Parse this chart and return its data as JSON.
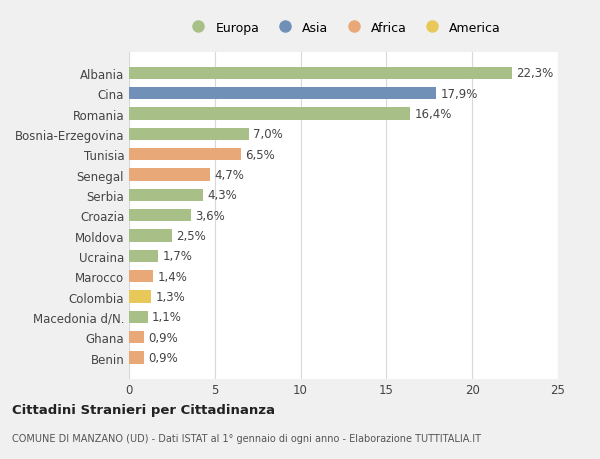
{
  "categories": [
    "Albania",
    "Cina",
    "Romania",
    "Bosnia-Erzegovina",
    "Tunisia",
    "Senegal",
    "Serbia",
    "Croazia",
    "Moldova",
    "Ucraina",
    "Marocco",
    "Colombia",
    "Macedonia d/N.",
    "Ghana",
    "Benin"
  ],
  "values": [
    22.3,
    17.9,
    16.4,
    7.0,
    6.5,
    4.7,
    4.3,
    3.6,
    2.5,
    1.7,
    1.4,
    1.3,
    1.1,
    0.9,
    0.9
  ],
  "labels": [
    "22,3%",
    "17,9%",
    "16,4%",
    "7,0%",
    "6,5%",
    "4,7%",
    "4,3%",
    "3,6%",
    "2,5%",
    "1,7%",
    "1,4%",
    "1,3%",
    "1,1%",
    "0,9%",
    "0,9%"
  ],
  "continents": [
    "Europa",
    "Asia",
    "Europa",
    "Europa",
    "Africa",
    "Africa",
    "Europa",
    "Europa",
    "Europa",
    "Europa",
    "Africa",
    "America",
    "Europa",
    "Africa",
    "Africa"
  ],
  "colors": {
    "Europa": "#a8c088",
    "Asia": "#7090b8",
    "Africa": "#e8a878",
    "America": "#e8c858"
  },
  "xlim": [
    0,
    25
  ],
  "xticks": [
    0,
    5,
    10,
    15,
    20,
    25
  ],
  "title": "Cittadini Stranieri per Cittadinanza",
  "subtitle": "COMUNE DI MANZANO (UD) - Dati ISTAT al 1° gennaio di ogni anno - Elaborazione TUTTITALIA.IT",
  "background_color": "#f0f0f0",
  "plot_background": "#ffffff",
  "grid_color": "#d8d8d8",
  "legend_order": [
    "Europa",
    "Asia",
    "Africa",
    "America"
  ]
}
